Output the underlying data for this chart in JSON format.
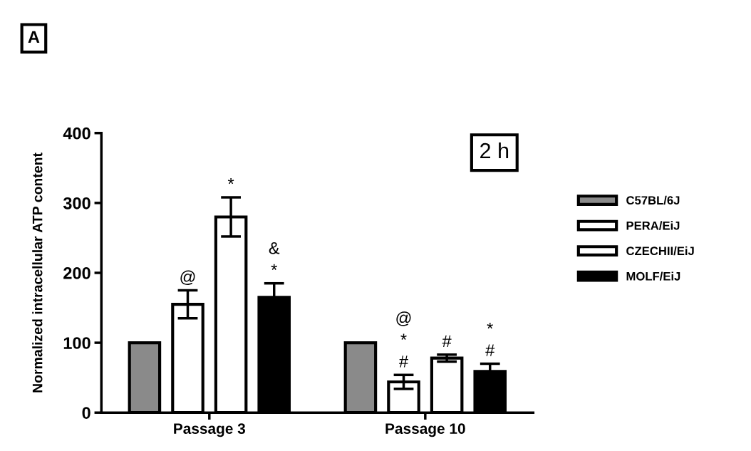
{
  "chart_data": {
    "type": "bar",
    "ylabel": "Normalized intracellular ATP content",
    "categories": [
      "Passage 3",
      "Passage 10"
    ],
    "series": [
      {
        "name": "C57BL/6J",
        "color": "#8a8a8a",
        "values": [
          100,
          100
        ],
        "errors": [
          null,
          null
        ],
        "value_labels": [
          null,
          null
        ]
      },
      {
        "name": "PERA/EiJ",
        "color": "#ffffff",
        "values": [
          155,
          44
        ],
        "errors": [
          20,
          10
        ],
        "value_labels": [
          "@",
          "@\n*\n#"
        ]
      },
      {
        "name": "CZECHII/EiJ",
        "color": "#ffffff",
        "values": [
          280,
          78
        ],
        "errors": [
          28,
          5
        ],
        "value_labels": [
          "*",
          "#"
        ]
      },
      {
        "name": "MOLF/EiJ",
        "color": "#000000",
        "values": [
          165,
          59
        ],
        "errors": [
          20,
          11
        ],
        "value_labels": [
          "&\n*",
          "*\n#"
        ]
      }
    ],
    "ylim": [
      0,
      400
    ],
    "yticks": [
      0,
      100,
      200,
      300,
      400
    ],
    "grid": false,
    "legend": "right",
    "annotations": [
      "A",
      "2 h"
    ]
  }
}
